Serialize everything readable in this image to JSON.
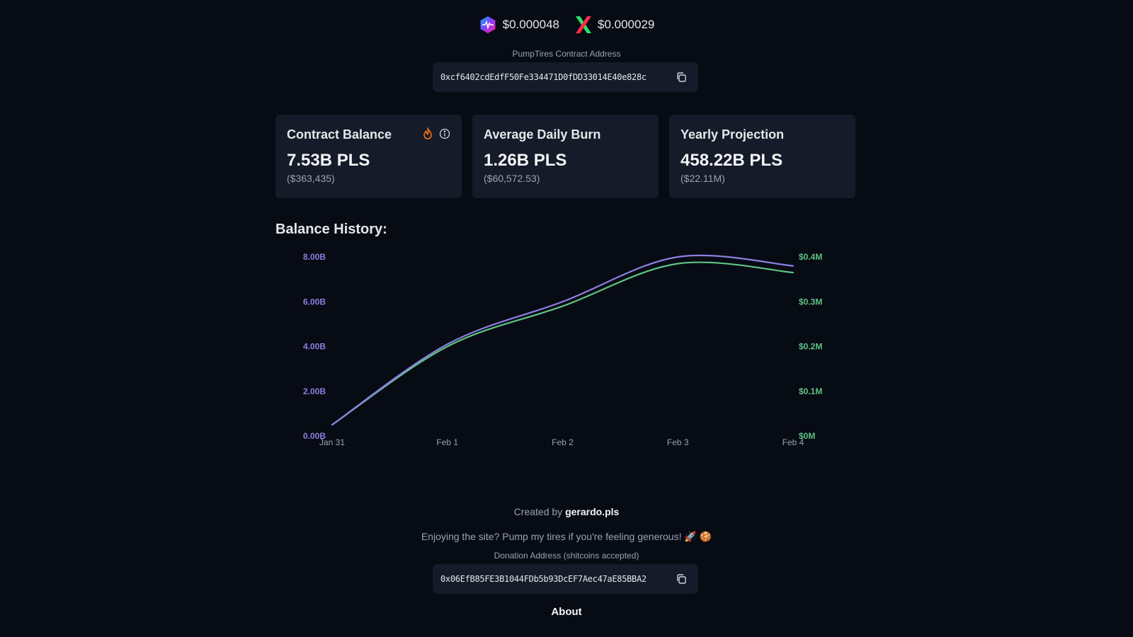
{
  "prices": {
    "pls_price": "$0.000048",
    "plsx_price": "$0.000029"
  },
  "contract": {
    "label": "PumpTires Contract Address",
    "address": "0xcf6402cdEdfF50Fe334471D0fDD33014E40e828c"
  },
  "cards": [
    {
      "title": "Contract Balance",
      "value": "7.53B PLS",
      "sub": "($363,435)"
    },
    {
      "title": "Average Daily Burn",
      "value": "1.26B PLS",
      "sub": "($60,572.53)"
    },
    {
      "title": "Yearly Projection",
      "value": "458.22B PLS",
      "sub": "($22.11M)"
    }
  ],
  "history": {
    "title": "Balance History:"
  },
  "chart_data": {
    "type": "line",
    "x": [
      "Jan 31",
      "Feb 1",
      "Feb 2",
      "Feb 3",
      "Feb 4"
    ],
    "series": [
      {
        "axis": "left",
        "color": "#8b7fe0",
        "values": [
          0.5,
          4.1,
          6.0,
          8.0,
          7.6
        ]
      },
      {
        "axis": "right",
        "color": "#5fc384",
        "values": [
          0.025,
          0.2,
          0.29,
          0.385,
          0.365
        ]
      }
    ],
    "y_left": {
      "ticks": [
        "0.00B",
        "2.00B",
        "4.00B",
        "6.00B",
        "8.00B"
      ],
      "lim": [
        0,
        8
      ],
      "color": "#8b7fe0"
    },
    "y_right": {
      "ticks": [
        "$0M",
        "$0.1M",
        "$0.2M",
        "$0.3M",
        "$0.4M"
      ],
      "lim": [
        0,
        0.4
      ],
      "color": "#5fc384"
    },
    "grid": false
  },
  "footer": {
    "created_prefix": "Created by",
    "created_name": "gerardo.pls",
    "enjoy_text": "Enjoying the site? Pump my tires if you're feeling generous! 🚀 🍪",
    "donation_label": "Donation Address (shitcoins accepted)",
    "donation_address": "0x06EfB85FE3B1044FDb5b93DcEF7Aec47aE85BBA2",
    "about_label": "About"
  },
  "colors": {
    "background": "#070b14",
    "card": "#151b28",
    "pls_line": "#8b7fe0",
    "usd_line": "#5fc384",
    "flame": "#f97316"
  },
  "icons": [
    "pulsechain-logo-icon",
    "pulsex-logo-icon",
    "copy-icon",
    "fire-icon",
    "info-icon"
  ]
}
